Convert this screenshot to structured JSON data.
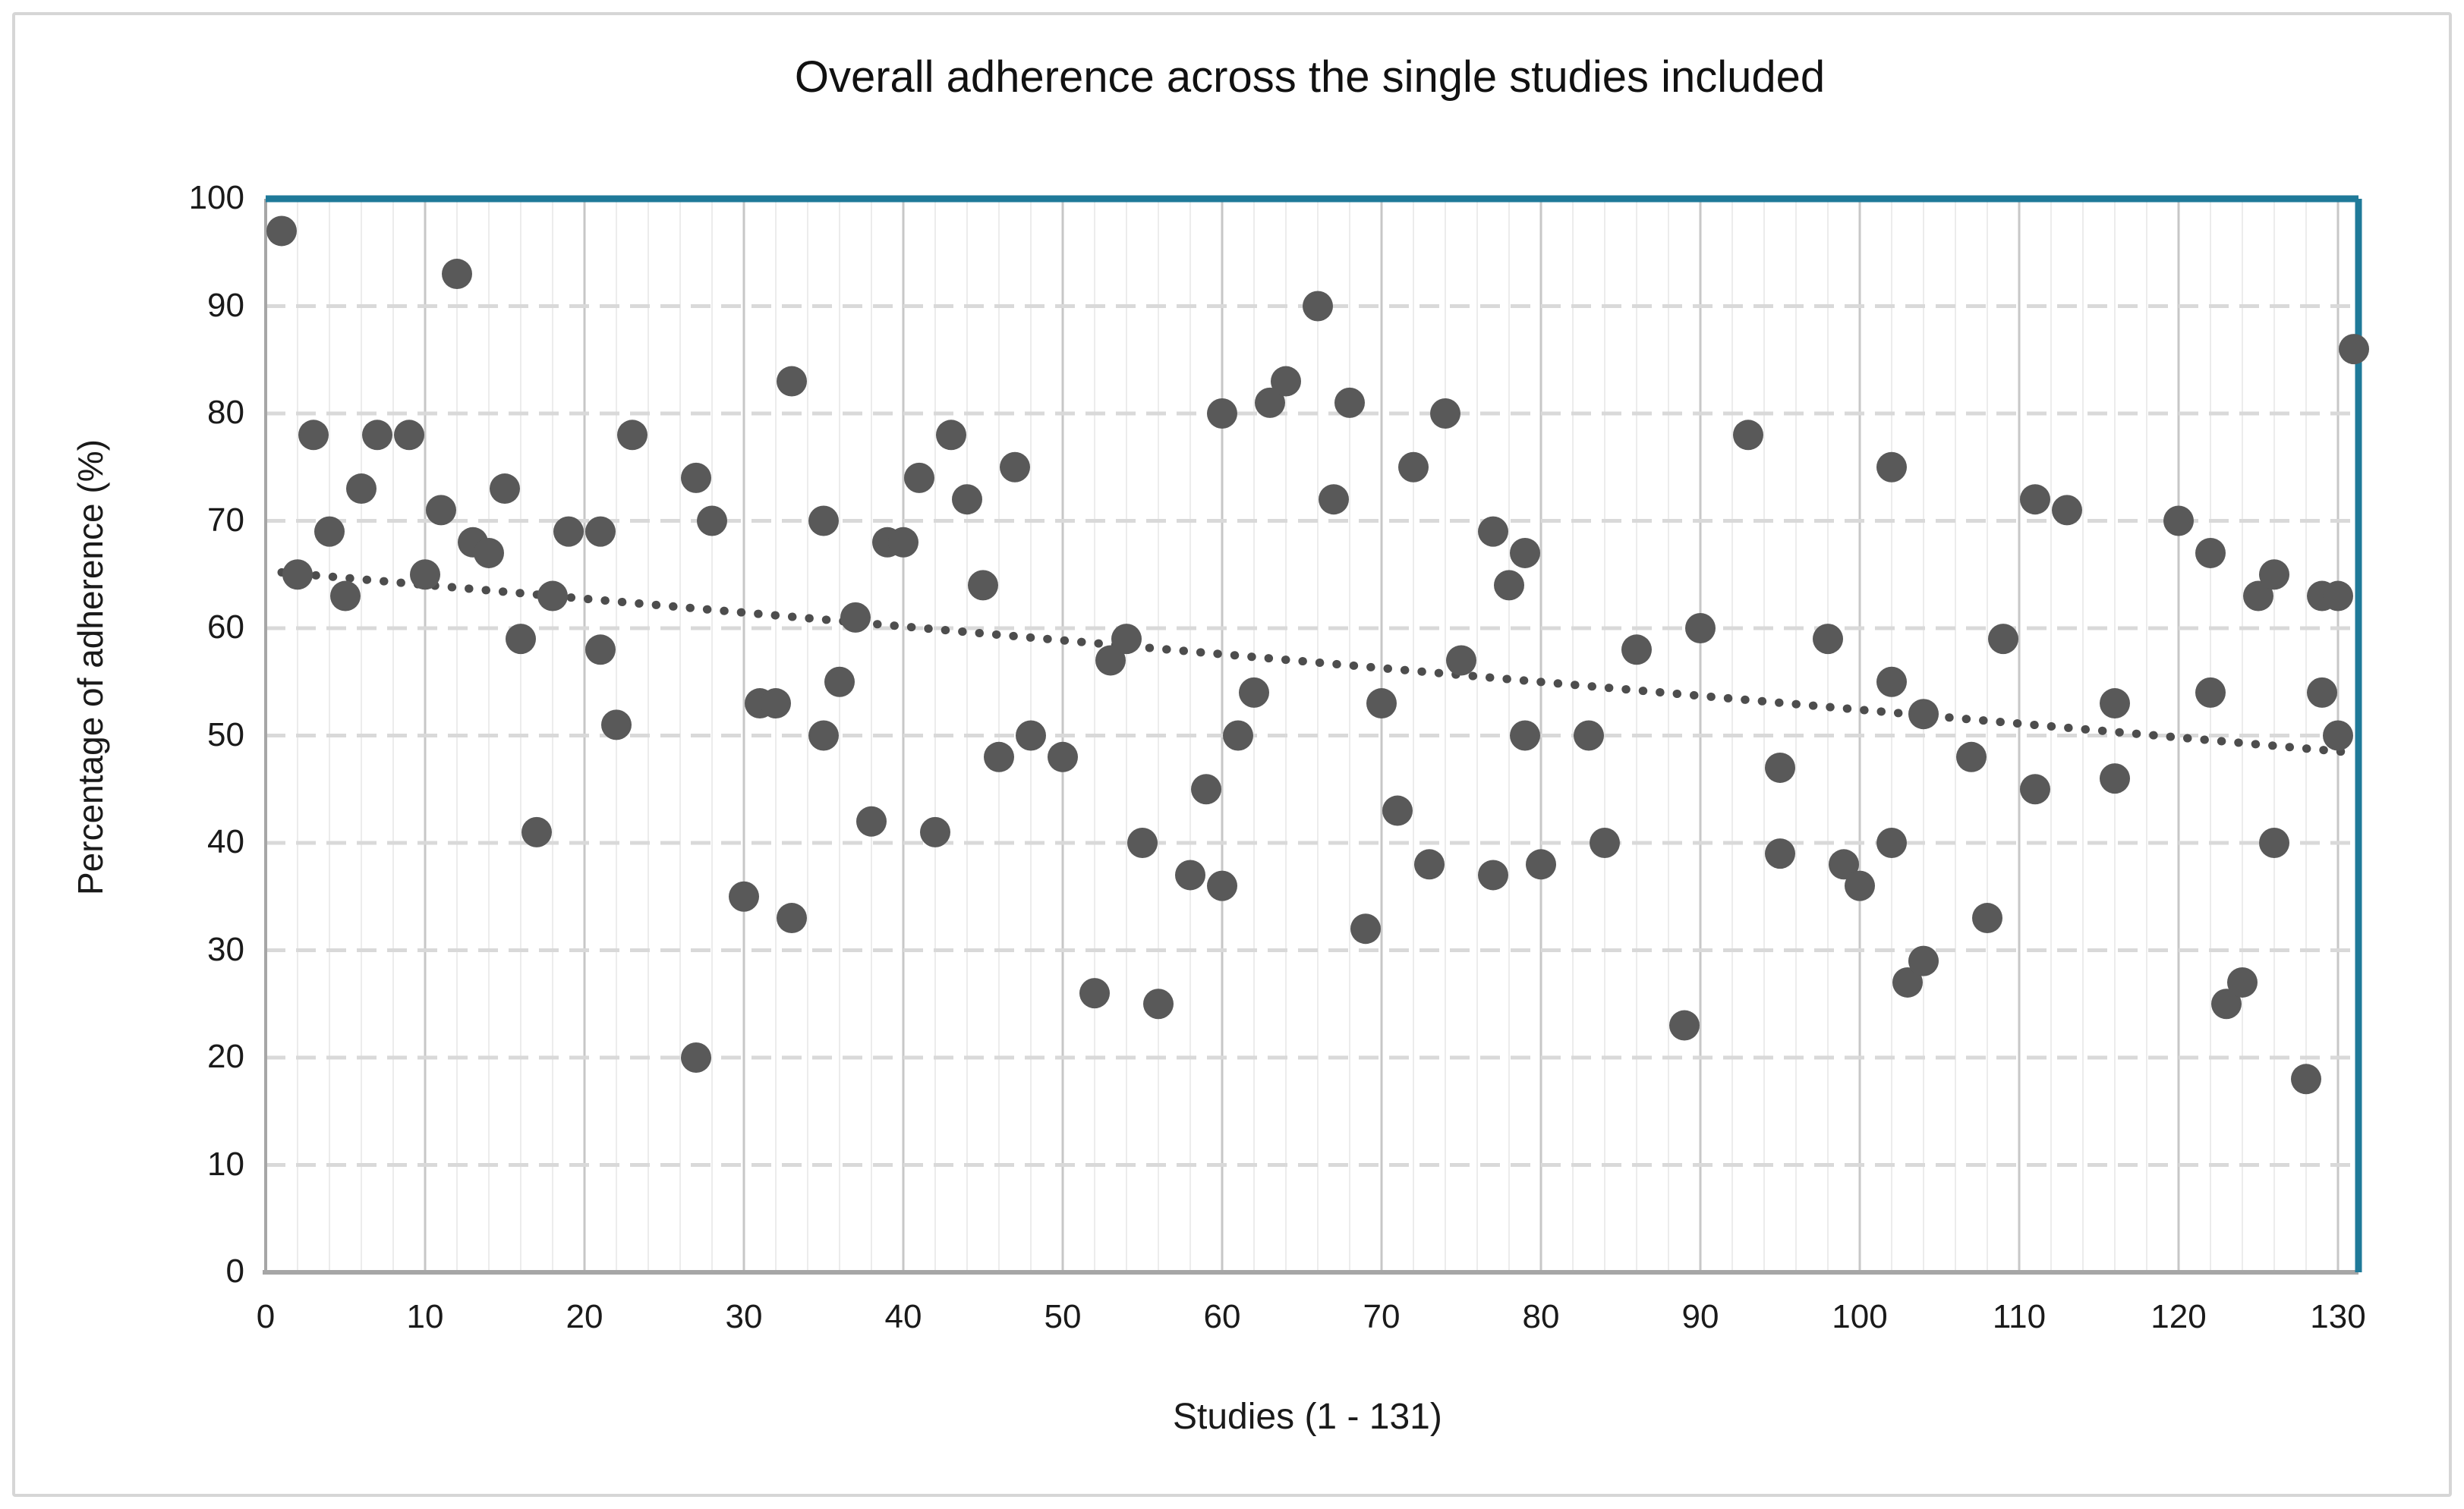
{
  "title": "Overall adherence across the single studies included",
  "x_axis": {
    "label": "Studies (1 - 131)",
    "min": 0,
    "max": 131,
    "ticks": [
      0,
      10,
      20,
      30,
      40,
      50,
      60,
      70,
      80,
      90,
      100,
      110,
      120,
      130
    ]
  },
  "y_axis": {
    "label": "Percentage of adherence (%)",
    "min": 0,
    "max": 100,
    "ticks": [
      0,
      10,
      20,
      30,
      40,
      50,
      60,
      70,
      80,
      90,
      100
    ]
  },
  "colors": {
    "point": "#595959",
    "trendline": "#4d4d4d",
    "plot_border_top_right": "#1f7a99",
    "axis_line": "#a6a6a6",
    "grid_minor": "#ececec",
    "grid_major": "#c7c7c7",
    "grid_horizontal": "#d9d9d9",
    "text": "#1a1a1a"
  },
  "chart_data": {
    "type": "scatter",
    "title": "Overall adherence across the single studies included",
    "xlabel": "Studies (1 - 131)",
    "ylabel": "Percentage of adherence (%)",
    "xlim": [
      0,
      131
    ],
    "ylim": [
      0,
      100
    ],
    "grid": "on",
    "legend": "none",
    "marker_color": "#595959",
    "series": [
      {
        "name": "Overall adherence",
        "points": [
          [
            1,
            97
          ],
          [
            2,
            65
          ],
          [
            3,
            78
          ],
          [
            4,
            69
          ],
          [
            5,
            63
          ],
          [
            6,
            73
          ],
          [
            7,
            78
          ],
          [
            9,
            78
          ],
          [
            10,
            65
          ],
          [
            11,
            71
          ],
          [
            12,
            93
          ],
          [
            13,
            68
          ],
          [
            14,
            67
          ],
          [
            15,
            73
          ],
          [
            16,
            59
          ],
          [
            17,
            41
          ],
          [
            18,
            63
          ],
          [
            19,
            69
          ],
          [
            21,
            69
          ],
          [
            21,
            58
          ],
          [
            22,
            51
          ],
          [
            23,
            78
          ],
          [
            27,
            20
          ],
          [
            27,
            74
          ],
          [
            28,
            70
          ],
          [
            30,
            35
          ],
          [
            31,
            53
          ],
          [
            32,
            53
          ],
          [
            33,
            33
          ],
          [
            33,
            83
          ],
          [
            35,
            50
          ],
          [
            35,
            70
          ],
          [
            36,
            55
          ],
          [
            37,
            61
          ],
          [
            38,
            42
          ],
          [
            39,
            68
          ],
          [
            40,
            68
          ],
          [
            41,
            74
          ],
          [
            42,
            41
          ],
          [
            43,
            78
          ],
          [
            44,
            72
          ],
          [
            45,
            64
          ],
          [
            46,
            48
          ],
          [
            47,
            75
          ],
          [
            48,
            50
          ],
          [
            50,
            48
          ],
          [
            52,
            26
          ],
          [
            53,
            57
          ],
          [
            54,
            59
          ],
          [
            55,
            40
          ],
          [
            56,
            25
          ],
          [
            58,
            37
          ],
          [
            59,
            45
          ],
          [
            60,
            36
          ],
          [
            60,
            80
          ],
          [
            61,
            50
          ],
          [
            62,
            54
          ],
          [
            63,
            81
          ],
          [
            64,
            83
          ],
          [
            66,
            90
          ],
          [
            67,
            72
          ],
          [
            68,
            81
          ],
          [
            69,
            32
          ],
          [
            70,
            53
          ],
          [
            71,
            43
          ],
          [
            72,
            75
          ],
          [
            73,
            38
          ],
          [
            74,
            80
          ],
          [
            75,
            57
          ],
          [
            77,
            37
          ],
          [
            77,
            69
          ],
          [
            78,
            64
          ],
          [
            79,
            50
          ],
          [
            79,
            67
          ],
          [
            80,
            38
          ],
          [
            83,
            50
          ],
          [
            84,
            40
          ],
          [
            86,
            58
          ],
          [
            89,
            23
          ],
          [
            90,
            60
          ],
          [
            93,
            78
          ],
          [
            95,
            39
          ],
          [
            95,
            47
          ],
          [
            98,
            59
          ],
          [
            99,
            38
          ],
          [
            100,
            36
          ],
          [
            102,
            40
          ],
          [
            102,
            55
          ],
          [
            102,
            75
          ],
          [
            103,
            27
          ],
          [
            104,
            29
          ],
          [
            104,
            52
          ],
          [
            107,
            48
          ],
          [
            108,
            33
          ],
          [
            109,
            59
          ],
          [
            111,
            45
          ],
          [
            111,
            72
          ],
          [
            113,
            71
          ],
          [
            116,
            46
          ],
          [
            116,
            53
          ],
          [
            120,
            70
          ],
          [
            122,
            54
          ],
          [
            122,
            67
          ],
          [
            123,
            25
          ],
          [
            124,
            27
          ],
          [
            125,
            63
          ],
          [
            126,
            40
          ],
          [
            126,
            65
          ],
          [
            128,
            18
          ],
          [
            129,
            54
          ],
          [
            129,
            63
          ],
          [
            130,
            50
          ],
          [
            130,
            63
          ],
          [
            131,
            86
          ]
        ]
      }
    ],
    "trendline": {
      "style": "dotted",
      "x1": 1,
      "y1": 65.2,
      "x2": 131,
      "y2": 48.4
    }
  }
}
